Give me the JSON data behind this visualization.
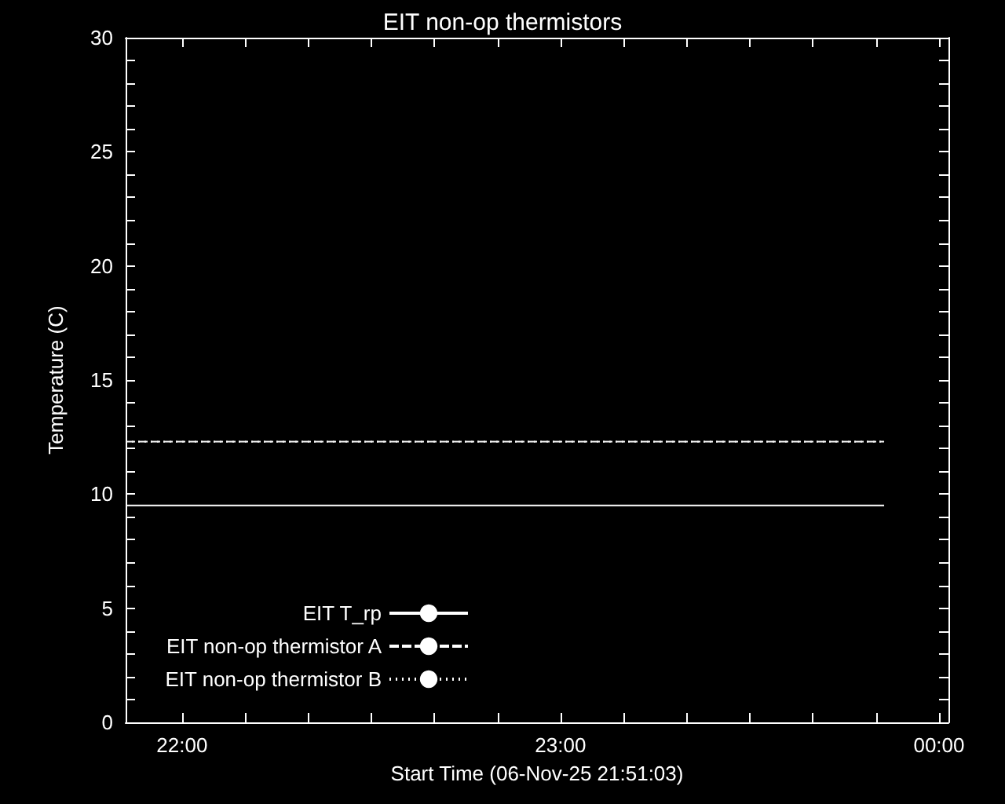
{
  "chart_data": {
    "type": "line",
    "title": "EIT non-op thermistors",
    "xlabel": "Start Time (06-Nov-25 21:51:03)",
    "ylabel": "Temperature (C)",
    "xlim": [
      21.851,
      24.025
    ],
    "xticks": [
      {
        "value": 22,
        "label": "22:00"
      },
      {
        "value": 22.1667,
        "label": null
      },
      {
        "value": 22.3333,
        "label": null
      },
      {
        "value": 22.5,
        "label": null
      },
      {
        "value": 22.6667,
        "label": null
      },
      {
        "value": 22.8333,
        "label": null
      },
      {
        "value": 23,
        "label": "23:00"
      },
      {
        "value": 23.1667,
        "label": null
      },
      {
        "value": 23.3333,
        "label": null
      },
      {
        "value": 23.5,
        "label": null
      },
      {
        "value": 23.6667,
        "label": null
      },
      {
        "value": 23.8333,
        "label": null
      },
      {
        "value": 24,
        "label": "00:00"
      }
    ],
    "ylim": [
      0,
      30
    ],
    "yticks": [
      0,
      {
        "value": 1,
        "label": null
      },
      {
        "value": 2,
        "label": null
      },
      {
        "value": 3,
        "label": null
      },
      {
        "value": 4,
        "label": null
      },
      5,
      {
        "value": 6,
        "label": null
      },
      {
        "value": 7,
        "label": null
      },
      {
        "value": 8,
        "label": null
      },
      {
        "value": 9,
        "label": null
      },
      10,
      {
        "value": 11,
        "label": null
      },
      {
        "value": 12,
        "label": null
      },
      {
        "value": 13,
        "label": null
      },
      {
        "value": 14,
        "label": null
      },
      15,
      {
        "value": 16,
        "label": null
      },
      {
        "value": 17,
        "label": null
      },
      {
        "value": 18,
        "label": null
      },
      {
        "value": 19,
        "label": null
      },
      20,
      {
        "value": 21,
        "label": null
      },
      {
        "value": 22,
        "label": null
      },
      {
        "value": 23,
        "label": null
      },
      {
        "value": 24,
        "label": null
      },
      25,
      {
        "value": 26,
        "label": null
      },
      {
        "value": 27,
        "label": null
      },
      {
        "value": 28,
        "label": null
      },
      {
        "value": 29,
        "label": null
      },
      30
    ],
    "x": [
      21.851,
      23.855
    ],
    "legend": "bottom left",
    "grid": false,
    "marker": "none",
    "series": [
      {
        "name": "EIT T_rp",
        "color": "#ffffff",
        "line_style": "solid",
        "values": [
          9.5,
          9.5
        ]
      },
      {
        "name": "EIT non-op thermistor A",
        "color": "#ffffff",
        "line_style": "dashed",
        "values": [
          12.3,
          12.3
        ]
      },
      {
        "name": "EIT non-op thermistor B",
        "color": "#ffffff",
        "line_style": "dotted",
        "values": [
          12.3,
          12.3
        ]
      }
    ]
  }
}
